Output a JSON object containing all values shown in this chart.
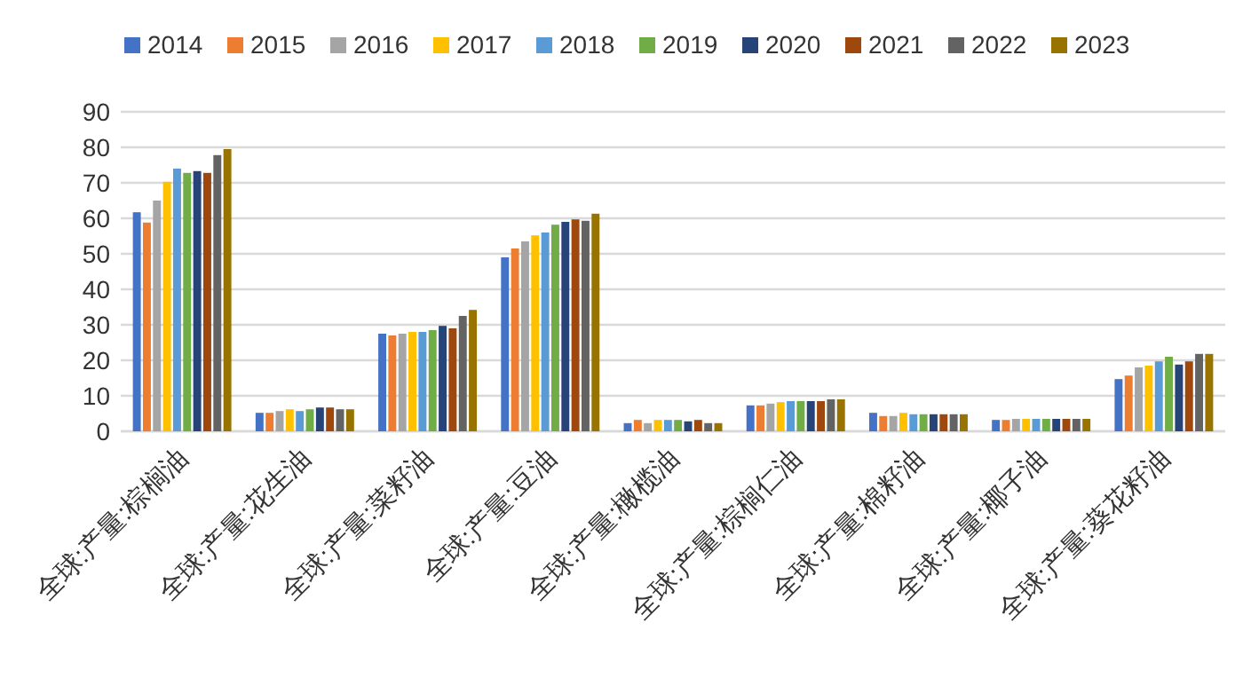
{
  "chart_data": {
    "type": "bar",
    "categories": [
      "全球:产量:棕榈油",
      "全球:产量:花生油",
      "全球:产量:菜籽油",
      "全球:产量:豆油",
      "全球:产量:橄榄油",
      "全球:产量:棕榈仁油",
      "全球:产量:棉籽油",
      "全球:产量:椰子油",
      "全球:产量:葵花籽油"
    ],
    "series": [
      {
        "name": "2014",
        "color": "#4472c4",
        "values": [
          61.7,
          5.2,
          27.5,
          49,
          2.3,
          7.3,
          5.2,
          3.2,
          14.7
        ]
      },
      {
        "name": "2015",
        "color": "#ed7d31",
        "values": [
          58.8,
          5.2,
          27,
          51.5,
          3.2,
          7.3,
          4.3,
          3.2,
          15.7
        ]
      },
      {
        "name": "2016",
        "color": "#a5a5a5",
        "values": [
          65,
          5.7,
          27.5,
          53.5,
          2.3,
          7.8,
          4.3,
          3.5,
          18
        ]
      },
      {
        "name": "2017",
        "color": "#ffc000",
        "values": [
          70.3,
          6.2,
          28,
          55.2,
          3.2,
          8.2,
          5.2,
          3.5,
          18.5
        ]
      },
      {
        "name": "2018",
        "color": "#5b9bd5",
        "values": [
          74,
          5.7,
          28,
          56,
          3.2,
          8.5,
          4.8,
          3.5,
          19.7
        ]
      },
      {
        "name": "2019",
        "color": "#70ad47",
        "values": [
          72.8,
          6.2,
          28.5,
          58.2,
          3.2,
          8.5,
          4.8,
          3.5,
          21
        ]
      },
      {
        "name": "2020",
        "color": "#264478",
        "values": [
          73.3,
          6.7,
          29.7,
          59,
          2.8,
          8.5,
          4.8,
          3.5,
          18.8
        ]
      },
      {
        "name": "2021",
        "color": "#9e480e",
        "values": [
          72.8,
          6.7,
          29,
          59.7,
          3.2,
          8.5,
          4.8,
          3.5,
          19.7
        ]
      },
      {
        "name": "2022",
        "color": "#636363",
        "values": [
          77.8,
          6.2,
          32.5,
          59.3,
          2.3,
          9,
          4.8,
          3.5,
          21.8
        ]
      },
      {
        "name": "2023",
        "color": "#997300",
        "values": [
          79.5,
          6.2,
          34.2,
          61.3,
          2.3,
          9,
          4.8,
          3.5,
          21.8
        ]
      }
    ],
    "ylim": [
      0,
      90
    ],
    "yticks": [
      0,
      10,
      20,
      30,
      40,
      50,
      60,
      70,
      80,
      90
    ],
    "grid": "y",
    "legend": "top"
  }
}
